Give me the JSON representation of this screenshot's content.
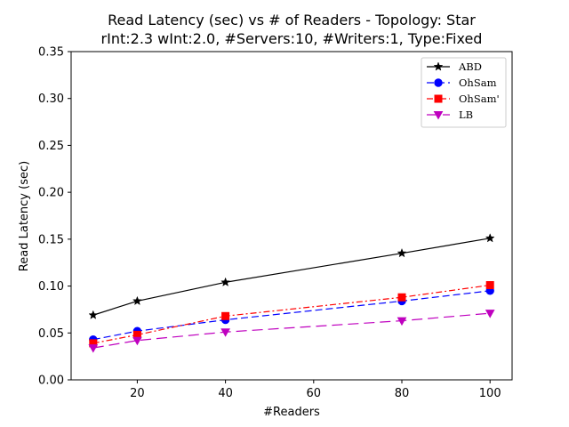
{
  "chart_data": {
    "type": "line",
    "title": "Read Latency (sec) vs # of Readers - Topology: Star",
    "subtitle": "rInt:2.3 wInt:2.0, #Servers:10, #Writers:1, Type:Fixed",
    "xlabel": "#Readers",
    "ylabel": "Read Latency (sec)",
    "xlim": [
      5,
      105
    ],
    "ylim": [
      0,
      0.35
    ],
    "xticks": [
      20,
      40,
      60,
      80,
      100
    ],
    "yticks": [
      0.0,
      0.05,
      0.1,
      0.15,
      0.2,
      0.25,
      0.3,
      0.35
    ],
    "xtick_labels": [
      "20",
      "40",
      "60",
      "80",
      "100"
    ],
    "ytick_labels": [
      "0.00",
      "0.05",
      "0.10",
      "0.15",
      "0.20",
      "0.25",
      "0.30",
      "0.35"
    ],
    "grid": false,
    "legend_position": "top-right",
    "x": [
      10,
      20,
      40,
      80,
      100
    ],
    "series": [
      {
        "name": "ABD",
        "values": [
          0.069,
          0.084,
          0.104,
          0.135,
          0.151
        ],
        "color": "#000000",
        "marker": "star",
        "dash": "solid"
      },
      {
        "name": "OhSam",
        "values": [
          0.043,
          0.052,
          0.064,
          0.084,
          0.095
        ],
        "color": "#0000ff",
        "marker": "circle",
        "dash": "dashed"
      },
      {
        "name": "OhSam'",
        "values": [
          0.039,
          0.048,
          0.068,
          0.088,
          0.101
        ],
        "color": "#ff0000",
        "marker": "square",
        "dash": "dashdot"
      },
      {
        "name": "LB",
        "values": [
          0.034,
          0.042,
          0.051,
          0.063,
          0.071
        ],
        "color": "#bf00bf",
        "marker": "triangle-down",
        "dash": "longdash"
      }
    ]
  }
}
